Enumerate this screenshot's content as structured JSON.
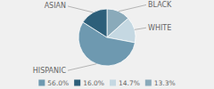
{
  "chart_data": {
    "type": "pie",
    "categories": [
      "BLACK",
      "WHITE",
      "HISPANIC",
      "ASIAN"
    ],
    "values": [
      13.3,
      14.7,
      56.0,
      16.0
    ],
    "value_labels": [
      "13.3%",
      "14.7%",
      "56.0%",
      "16.0%"
    ],
    "colors": [
      "#8aaaba",
      "#c5d8e2",
      "#6e99b0",
      "#2d5f7a"
    ],
    "legend": "bottom"
  }
}
